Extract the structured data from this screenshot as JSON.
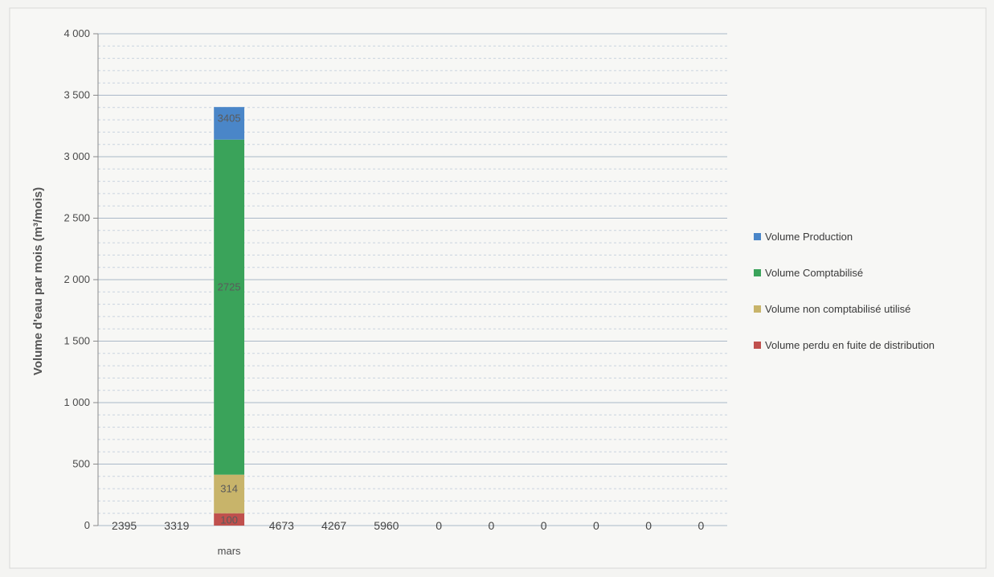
{
  "chart_data": {
    "type": "bar",
    "stacked": true,
    "ylabel": "Volume d'eau par mois (m³/mois)",
    "ylim": [
      0,
      4000
    ],
    "yticks": [
      {
        "value": 0,
        "label": "0"
      },
      {
        "value": 500,
        "label": "500"
      },
      {
        "value": 1000,
        "label": "1 000"
      },
      {
        "value": 1500,
        "label": "1 500"
      },
      {
        "value": 2000,
        "label": "2 000"
      },
      {
        "value": 2500,
        "label": "2 500"
      },
      {
        "value": 3000,
        "label": "3 000"
      },
      {
        "value": 3500,
        "label": "3 500"
      },
      {
        "value": 4000,
        "label": "4 000"
      }
    ],
    "categories": [
      "",
      "",
      "mars",
      "",
      "",
      "",
      "",
      "",
      "",
      "",
      "",
      ""
    ],
    "grid": true,
    "legend_position": "right",
    "series": [
      {
        "name": "Volume perdu en fuite de distribution",
        "color": "#c0504d",
        "values": [
          0,
          0,
          100,
          0,
          0,
          0,
          0,
          0,
          0,
          0,
          0,
          0
        ],
        "labels": [
          "",
          "",
          "100",
          "",
          "",
          "",
          "",
          "",
          "",
          "",
          "",
          ""
        ]
      },
      {
        "name": "Volume non comptabilisé utilisé",
        "color": "#c8b46a",
        "values": [
          0,
          0,
          314,
          0,
          0,
          0,
          0,
          0,
          0,
          0,
          0,
          0
        ],
        "labels": [
          "",
          "",
          "314",
          "",
          "",
          "",
          "",
          "",
          "",
          "",
          "",
          ""
        ]
      },
      {
        "name": "Volume Comptabilisé",
        "color": "#3aa35a",
        "values": [
          0,
          0,
          2725,
          0,
          0,
          0,
          0,
          0,
          0,
          0,
          0,
          0
        ],
        "labels": [
          "",
          "",
          "2725",
          "",
          "",
          "",
          "",
          "",
          "",
          "",
          "",
          ""
        ]
      },
      {
        "name": "Volume Production",
        "color": "#4a86c8",
        "values": [
          0,
          0,
          265,
          0,
          0,
          0,
          0,
          0,
          0,
          0,
          0,
          0
        ],
        "labels": [
          "",
          "",
          "3405",
          "",
          "",
          "",
          "",
          "",
          "",
          "",
          "",
          ""
        ]
      }
    ],
    "legend_order": [
      3,
      2,
      1,
      0
    ],
    "bottom_labels": [
      "2395",
      "3319",
      "",
      "4673",
      "4267",
      "5960",
      "0",
      "0",
      "0",
      "0",
      "0",
      "0"
    ]
  }
}
